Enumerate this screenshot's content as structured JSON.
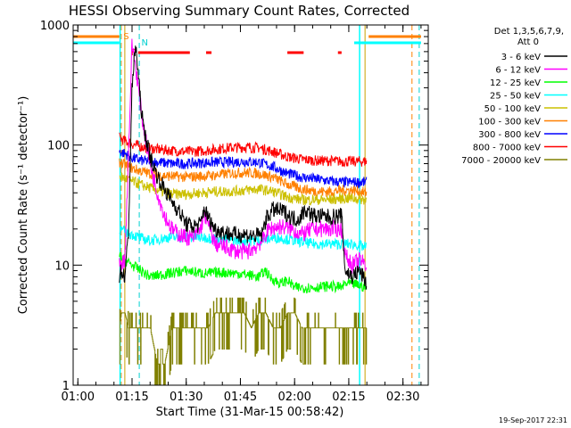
{
  "chart_data": {
    "type": "line",
    "title": "HESSI Observing Summary Count Rates, Corrected",
    "xlabel": "Start Time (31-Mar-15 00:58:42)",
    "ylabel": "Corrected Count Rate (s⁻¹ detector⁻¹)",
    "ylog": true,
    "ylim": [
      1,
      1000
    ],
    "xlim_minutes": [
      58.7,
      157
    ],
    "x_ticks": [
      {
        "m": 60,
        "label": "01:00"
      },
      {
        "m": 75,
        "label": "01:15"
      },
      {
        "m": 90,
        "label": "01:30"
      },
      {
        "m": 105,
        "label": "01:45"
      },
      {
        "m": 120,
        "label": "02:00"
      },
      {
        "m": 135,
        "label": "02:15"
      },
      {
        "m": 150,
        "label": "02:30"
      }
    ],
    "y_ticks": [
      {
        "v": 1,
        "label": "1"
      },
      {
        "v": 10,
        "label": "10"
      },
      {
        "v": 100,
        "label": "100"
      },
      {
        "v": 1000,
        "label": "1000"
      }
    ],
    "legend_header": [
      "Det 1,3,5,6,7,9,",
      "Att 0"
    ],
    "legend_placement": "right",
    "footer_date": "19-Sep-2017 22:31",
    "data_window_minutes": [
      71.5,
      140.0
    ],
    "series": [
      {
        "name": "3 - 6 keV",
        "color": "#000000",
        "points": [
          [
            71.5,
            8
          ],
          [
            72,
            9
          ],
          [
            73,
            8
          ],
          [
            74,
            18
          ],
          [
            75,
            300
          ],
          [
            76,
            700
          ],
          [
            77,
            300
          ],
          [
            78,
            150
          ],
          [
            80,
            80
          ],
          [
            82,
            55
          ],
          [
            85,
            38
          ],
          [
            88,
            28
          ],
          [
            90,
            22
          ],
          [
            92,
            21
          ],
          [
            94,
            22
          ],
          [
            95,
            30
          ],
          [
            96,
            25
          ],
          [
            98,
            20
          ],
          [
            100,
            19
          ],
          [
            103,
            18
          ],
          [
            106,
            18
          ],
          [
            109,
            17.5
          ],
          [
            111,
            18
          ],
          [
            112,
            24
          ],
          [
            114,
            29
          ],
          [
            117,
            28
          ],
          [
            119,
            25
          ],
          [
            121,
            24
          ],
          [
            123,
            29
          ],
          [
            125,
            26
          ],
          [
            130,
            25
          ],
          [
            133,
            26
          ],
          [
            134,
            9
          ],
          [
            136,
            8
          ],
          [
            138,
            9
          ],
          [
            140,
            7
          ]
        ]
      },
      {
        "name": "6 - 12 keV",
        "color": "#ff00ff",
        "points": [
          [
            71.5,
            10
          ],
          [
            73,
            11
          ],
          [
            74,
            80
          ],
          [
            75,
            700
          ],
          [
            76,
            450
          ],
          [
            78,
            150
          ],
          [
            80,
            70
          ],
          [
            82,
            40
          ],
          [
            84,
            26
          ],
          [
            86,
            20
          ],
          [
            88,
            18
          ],
          [
            90,
            17
          ],
          [
            92,
            17
          ],
          [
            94,
            20
          ],
          [
            95,
            27
          ],
          [
            96,
            22
          ],
          [
            98,
            15
          ],
          [
            101,
            14
          ],
          [
            104,
            13
          ],
          [
            107,
            13
          ],
          [
            109,
            14
          ],
          [
            111,
            16
          ],
          [
            113,
            20
          ],
          [
            116,
            21
          ],
          [
            119,
            20
          ],
          [
            122,
            18
          ],
          [
            125,
            20
          ],
          [
            130,
            20
          ],
          [
            133,
            20
          ],
          [
            134,
            12
          ],
          [
            136,
            10
          ],
          [
            138,
            11
          ],
          [
            140,
            10
          ]
        ]
      },
      {
        "name": "12 - 25 keV",
        "color": "#00ff00",
        "points": [
          [
            71.5,
            12
          ],
          [
            73,
            11
          ],
          [
            75,
            10
          ],
          [
            80,
            8
          ],
          [
            85,
            8.5
          ],
          [
            90,
            9
          ],
          [
            95,
            8.5
          ],
          [
            100,
            8.7
          ],
          [
            105,
            8.5
          ],
          [
            110,
            8
          ],
          [
            112,
            9
          ],
          [
            113,
            8
          ],
          [
            116,
            7
          ],
          [
            118,
            7.5
          ],
          [
            120,
            6.5
          ],
          [
            125,
            6.5
          ],
          [
            130,
            6.7
          ],
          [
            133,
            6.5
          ],
          [
            134,
            7
          ],
          [
            136,
            7
          ],
          [
            140,
            6.5
          ]
        ]
      },
      {
        "name": "25 - 50 keV",
        "color": "#00ffff",
        "points": [
          [
            71.5,
            20
          ],
          [
            73,
            19
          ],
          [
            75,
            18
          ],
          [
            78,
            16.5
          ],
          [
            80,
            16
          ],
          [
            85,
            17
          ],
          [
            90,
            17
          ],
          [
            95,
            17
          ],
          [
            100,
            16.5
          ],
          [
            105,
            16
          ],
          [
            110,
            16
          ],
          [
            115,
            17
          ],
          [
            120,
            16
          ],
          [
            125,
            15
          ],
          [
            130,
            15
          ],
          [
            133,
            15
          ],
          [
            136,
            15
          ],
          [
            140,
            14
          ]
        ]
      },
      {
        "name": "50 - 100 keV",
        "color": "#ccc000",
        "points": [
          [
            71.5,
            55
          ],
          [
            73,
            53
          ],
          [
            75,
            50
          ],
          [
            78,
            46
          ],
          [
            82,
            42
          ],
          [
            86,
            39
          ],
          [
            90,
            39
          ],
          [
            94,
            40
          ],
          [
            98,
            41
          ],
          [
            102,
            41
          ],
          [
            106,
            42
          ],
          [
            110,
            43
          ],
          [
            114,
            41
          ],
          [
            118,
            37
          ],
          [
            122,
            35
          ],
          [
            126,
            35
          ],
          [
            130,
            35
          ],
          [
            133,
            36
          ],
          [
            136,
            36
          ],
          [
            140,
            35
          ]
        ]
      },
      {
        "name": "100 - 300 keV",
        "color": "#ff8000",
        "points": [
          [
            71.5,
            72
          ],
          [
            73,
            68
          ],
          [
            75,
            64
          ],
          [
            78,
            60
          ],
          [
            82,
            56
          ],
          [
            86,
            55
          ],
          [
            90,
            54
          ],
          [
            94,
            55
          ],
          [
            98,
            56
          ],
          [
            102,
            58
          ],
          [
            106,
            59
          ],
          [
            110,
            58
          ],
          [
            114,
            54
          ],
          [
            118,
            47
          ],
          [
            122,
            43
          ],
          [
            126,
            41
          ],
          [
            130,
            41
          ],
          [
            133,
            42
          ],
          [
            136,
            42
          ],
          [
            140,
            40
          ]
        ]
      },
      {
        "name": "300 - 800 keV",
        "color": "#0000ff",
        "points": [
          [
            71.5,
            88
          ],
          [
            73,
            85
          ],
          [
            75,
            78
          ],
          [
            78,
            74
          ],
          [
            82,
            72
          ],
          [
            86,
            70
          ],
          [
            90,
            70
          ],
          [
            94,
            71
          ],
          [
            98,
            72
          ],
          [
            102,
            72
          ],
          [
            106,
            73
          ],
          [
            110,
            72
          ],
          [
            114,
            66
          ],
          [
            118,
            58
          ],
          [
            122,
            54
          ],
          [
            126,
            52
          ],
          [
            130,
            50
          ],
          [
            133,
            49
          ],
          [
            136,
            49
          ],
          [
            140,
            49
          ]
        ]
      },
      {
        "name": "800 - 7000 keV",
        "color": "#ff0000",
        "points": [
          [
            71.5,
            115
          ],
          [
            73,
            108
          ],
          [
            75,
            102
          ],
          [
            78,
            96
          ],
          [
            82,
            92
          ],
          [
            86,
            90
          ],
          [
            90,
            88
          ],
          [
            94,
            89
          ],
          [
            98,
            92
          ],
          [
            102,
            95
          ],
          [
            106,
            96
          ],
          [
            110,
            95
          ],
          [
            114,
            88
          ],
          [
            118,
            80
          ],
          [
            122,
            76
          ],
          [
            126,
            74
          ],
          [
            130,
            74
          ],
          [
            133,
            73
          ],
          [
            136,
            73
          ],
          [
            140,
            73
          ]
        ]
      },
      {
        "name": "7000 - 20000 keV",
        "color": "#808000",
        "points": [
          [
            71.5,
            3
          ],
          [
            72,
            4
          ],
          [
            73,
            4
          ],
          [
            74,
            3
          ],
          [
            75,
            3
          ],
          [
            78,
            3
          ],
          [
            80,
            3
          ],
          [
            82,
            1.5
          ],
          [
            84,
            1.5
          ],
          [
            86,
            3
          ],
          [
            88,
            3
          ],
          [
            90,
            3
          ],
          [
            92,
            3
          ],
          [
            94,
            3
          ],
          [
            96,
            3
          ],
          [
            98,
            4
          ],
          [
            100,
            4
          ],
          [
            102,
            4
          ],
          [
            104,
            4
          ],
          [
            106,
            4
          ],
          [
            108,
            3
          ],
          [
            110,
            4
          ],
          [
            112,
            4
          ],
          [
            114,
            3
          ],
          [
            116,
            3
          ],
          [
            118,
            4
          ],
          [
            120,
            4
          ],
          [
            122,
            3
          ],
          [
            124,
            3
          ],
          [
            126,
            3
          ],
          [
            128,
            3
          ],
          [
            130,
            3
          ],
          [
            132,
            3
          ],
          [
            134,
            3
          ],
          [
            136,
            3
          ],
          [
            138,
            3
          ],
          [
            140,
            3
          ]
        ]
      }
    ],
    "markers": {
      "orange_dash_lines_minutes": [
        72.0,
        152.5
      ],
      "cyan_dash_lines_minutes": [
        77.0,
        154.5
      ],
      "gold_solid_lines_minutes": [
        73.0,
        139.5
      ],
      "cyan_solid_lines_minutes": [
        71.7,
        138.0
      ],
      "S_label": "S",
      "N_label": "N",
      "F_label": "F",
      "orange_bar_segments_minutes": [
        [
          58.7,
          71.5
        ],
        [
          140.5,
          155.0
        ]
      ],
      "cyan_bar_segments_minutes": [
        [
          58.7,
          71.5
        ],
        [
          136.5,
          155.0
        ]
      ],
      "flare_segments_minutes": [
        [
          76.7,
          91.0
        ],
        [
          95.5,
          97.0
        ],
        [
          118.0,
          122.5
        ],
        [
          132.0,
          133.0
        ]
      ]
    }
  }
}
